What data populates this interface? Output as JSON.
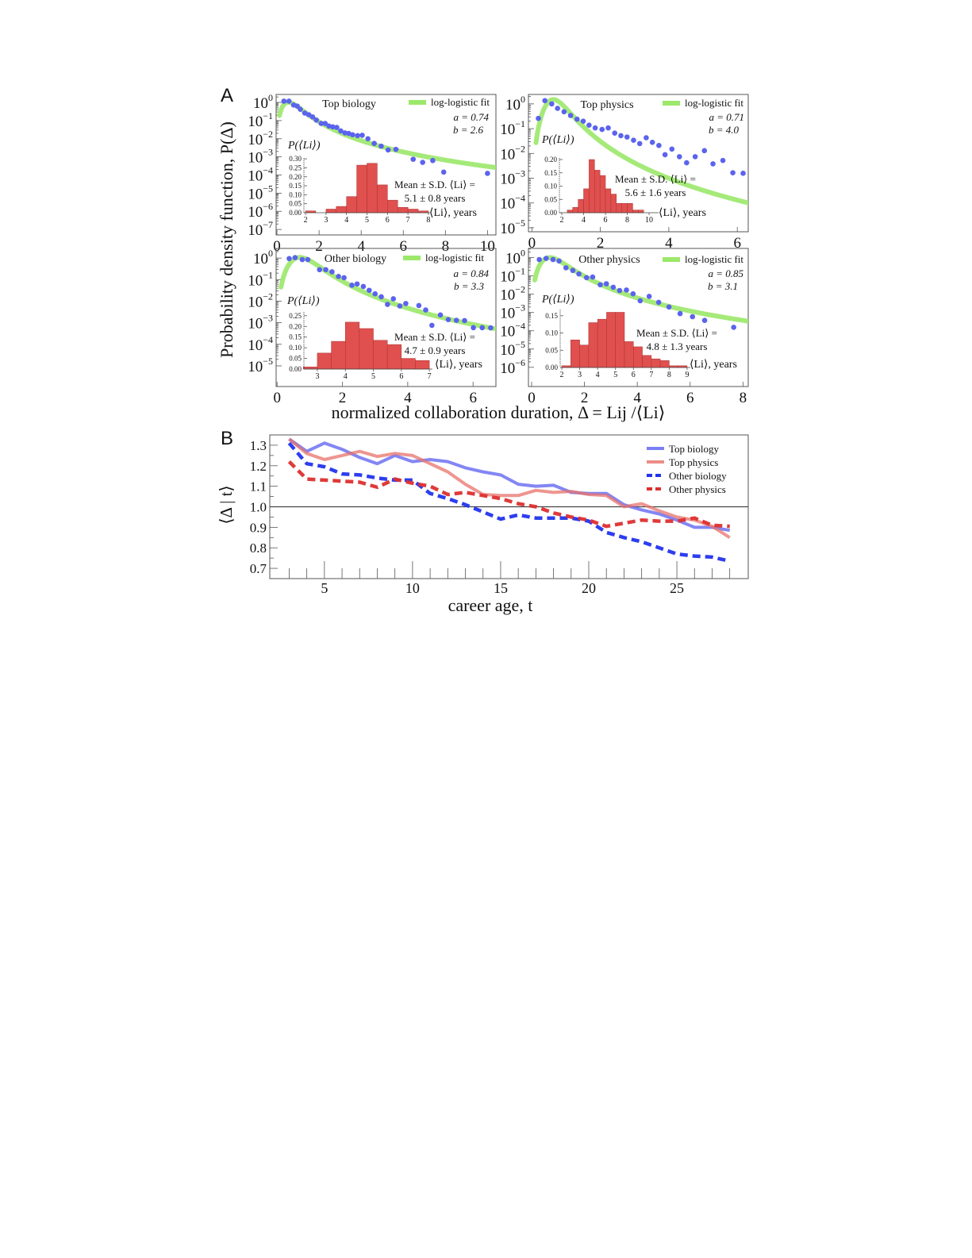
{
  "figure": {
    "panel_a_label": "A",
    "panel_b_label": "B",
    "a_ylabel": "Probability density function, P(Δ)",
    "a_xlabel": "normalized collaboration duration, Δ = Lij /⟨Li⟩"
  },
  "colors": {
    "scatter": "#5b63ee",
    "fit": "#9be86a",
    "histogram": "#e0504f",
    "histogram_edge": "#a83232",
    "top_biology": "#5a5ef0",
    "top_physics": "#e8716b",
    "other_biology": "#2233ee",
    "other_physics": "#dd2f2f"
  },
  "chart_data": [
    {
      "type": "scatter",
      "panel": "A",
      "title": "Top biology",
      "y_scale": "log",
      "xlim": [
        -0.04,
        10.4
      ],
      "ylim": [
        5e-08,
        2.75
      ],
      "xticks": [
        0,
        2,
        4,
        6,
        8,
        10
      ],
      "yticks_exp": [
        0,
        -1,
        -2,
        -3,
        -4,
        -5,
        -6,
        -7
      ],
      "x": [
        0.33,
        0.57,
        0.79,
        0.96,
        1.11,
        1.32,
        1.51,
        1.69,
        1.87,
        2.1,
        2.29,
        2.47,
        2.65,
        2.84,
        3.03,
        3.23,
        3.41,
        3.59,
        3.83,
        4.05,
        4.32,
        4.62,
        4.95,
        5.28,
        5.65,
        6.47,
        6.92,
        7.4,
        7.92,
        10.0
      ],
      "y": [
        1.17,
        1.17,
        0.72,
        0.63,
        0.42,
        0.26,
        0.21,
        0.16,
        0.107,
        0.069,
        0.069,
        0.05,
        0.045,
        0.042,
        0.027,
        0.021,
        0.0195,
        0.0166,
        0.0148,
        0.0155,
        0.01,
        0.0055,
        0.0039,
        0.0024,
        0.0026,
        0.00074,
        0.0005,
        0.00063,
        0.000145,
        0.000123
      ],
      "fit": {
        "label": "log-logistic fit",
        "a": 0.74,
        "b": 2.6,
        "a_text": "a = 0.74",
        "b_text": "b = 2.6"
      },
      "inset": {
        "type": "bar",
        "ylabel": "P(⟨Li⟩)",
        "xlabel": "⟨Li⟩, years",
        "annotation": [
          "Mean ± S.D. ⟨Li⟩ =",
          "5.1 ± 0.8 years"
        ],
        "bin_width": 0.5,
        "bins": [
          2,
          2.5,
          3,
          3.5,
          4,
          4.5,
          5,
          5.5,
          6,
          6.5,
          7,
          7.5
        ],
        "values": [
          0.01,
          0,
          0.02,
          0.035,
          0.09,
          0.265,
          0.275,
          0.155,
          0.07,
          0.03,
          0.02,
          0.01
        ],
        "xlim": [
          1.92,
          8.08
        ],
        "ylim": [
          0,
          0.305
        ],
        "xticks": [
          2,
          3,
          4,
          5,
          6,
          7,
          8
        ],
        "yticks": [
          "0.00",
          "0.05",
          "0.10",
          "0.15",
          "0.20",
          "0.25",
          "0.30"
        ]
      }
    },
    {
      "type": "scatter",
      "panel": "A",
      "title": "Top physics",
      "y_scale": "log",
      "xlim": [
        -0.1,
        6.32
      ],
      "ylim": [
        6.9e-06,
        2.4
      ],
      "xticks": [
        0,
        2,
        4,
        6
      ],
      "yticks_exp": [
        0,
        -1,
        -2,
        -3,
        -4,
        -5
      ],
      "x": [
        0.19,
        0.38,
        0.58,
        0.75,
        0.94,
        1.13,
        1.32,
        1.5,
        1.67,
        1.85,
        2.05,
        2.23,
        2.42,
        2.6,
        2.78,
        2.97,
        3.15,
        3.34,
        3.52,
        3.71,
        3.89,
        4.09,
        4.31,
        4.52,
        4.77,
        5.04,
        5.29,
        5.58,
        5.87,
        6.17
      ],
      "y": [
        0.26,
        1.35,
        1.0,
        0.66,
        0.48,
        0.34,
        0.24,
        0.2,
        0.138,
        0.107,
        0.093,
        0.107,
        0.066,
        0.052,
        0.046,
        0.034,
        0.025,
        0.043,
        0.028,
        0.021,
        0.0089,
        0.015,
        0.0074,
        0.0042,
        0.0074,
        0.0129,
        0.0038,
        0.0052,
        0.00166,
        0.00158
      ],
      "fit": {
        "label": "log-logistic fit",
        "a": 0.71,
        "b": 4.0,
        "a_text": "a = 0.71",
        "b_text": "b = 4.0"
      },
      "inset": {
        "type": "bar",
        "ylabel": "P(⟨Li⟩)",
        "xlabel": "⟨Li⟩, years",
        "annotation": [
          "Mean ± S.D. ⟨Li⟩ =",
          "5.6 ± 1.6 years"
        ],
        "bin_width": 0.5,
        "bins": [
          2.5,
          3,
          3.5,
          4,
          4.5,
          5,
          5.5,
          6,
          6.5,
          7,
          7.5,
          8,
          8.5,
          9
        ],
        "values": [
          0.01,
          0.02,
          0.05,
          0.09,
          0.2,
          0.16,
          0.14,
          0.09,
          0.07,
          0.035,
          0.035,
          0.035,
          0.01,
          0.01
        ],
        "xlim": [
          1.78,
          10.87
        ],
        "ylim": [
          0,
          0.206
        ],
        "xticks": [
          2,
          4,
          6,
          8,
          10
        ],
        "yticks": [
          "0.00",
          "0.05",
          "0.10",
          "0.15",
          "0.20"
        ]
      }
    },
    {
      "type": "scatter",
      "panel": "A",
      "title": "Other biology",
      "y_scale": "log",
      "xlim": [
        -0.03,
        6.7
      ],
      "ylim": [
        1.1e-06,
        2.8
      ],
      "xticks": [
        0,
        2,
        4,
        6
      ],
      "yticks_exp": [
        0,
        -1,
        -2,
        -3,
        -4,
        -5
      ],
      "x": [
        0.37,
        0.55,
        0.77,
        0.94,
        1.3,
        1.49,
        1.68,
        1.88,
        2.05,
        2.29,
        2.45,
        2.64,
        2.82,
        3.0,
        3.19,
        3.38,
        3.56,
        3.76,
        3.94,
        4.34,
        4.55,
        4.74,
        5.0,
        5.24,
        5.49,
        5.74,
        6.01,
        6.28,
        6.54
      ],
      "y": [
        0.95,
        1.05,
        0.85,
        0.85,
        0.29,
        0.29,
        0.23,
        0.14,
        0.123,
        0.055,
        0.063,
        0.048,
        0.032,
        0.022,
        0.016,
        0.0071,
        0.0129,
        0.006,
        0.0078,
        0.0063,
        0.0039,
        0.00076,
        0.0023,
        0.0014,
        0.0013,
        0.00126,
        0.00059,
        0.00059,
        0.00058
      ],
      "fit": {
        "label": "log-logistic fit",
        "a": 0.84,
        "b": 3.3,
        "a_text": "a = 0.84",
        "b_text": "b = 3.3"
      },
      "inset": {
        "type": "bar",
        "ylabel": "P(⟨Li⟩)",
        "xlabel": "⟨Li⟩, years",
        "annotation": [
          "Mean ± S.D. ⟨Li⟩ =",
          "4.7 ± 0.9 years"
        ],
        "bin_width": 0.5,
        "bins": [
          2.5,
          3,
          3.5,
          4,
          4.5,
          5,
          5.5,
          6,
          6.5
        ],
        "values": [
          0.01,
          0.075,
          0.13,
          0.22,
          0.19,
          0.135,
          0.115,
          0.05,
          0.04
        ],
        "xlim": [
          2.52,
          7.11
        ],
        "ylim": [
          0,
          0.268
        ],
        "xticks": [
          3,
          4,
          5,
          6,
          7
        ],
        "yticks": [
          "0.00",
          "0.05",
          "0.10",
          "0.15",
          "0.20",
          "0.25"
        ]
      }
    },
    {
      "type": "scatter",
      "panel": "A",
      "title": "Other physics",
      "y_scale": "log",
      "xlim": [
        -0.12,
        8.2
      ],
      "ylim": [
        8.9e-08,
        3.2
      ],
      "xticks": [
        0,
        2,
        4,
        6,
        8
      ],
      "yticks_exp": [
        0,
        -1,
        -2,
        -3,
        -4,
        -5,
        -6
      ],
      "x": [
        0.29,
        0.55,
        0.81,
        1.04,
        1.3,
        1.56,
        1.79,
        2.08,
        2.31,
        2.6,
        2.83,
        3.09,
        3.33,
        3.59,
        3.84,
        4.11,
        4.45,
        4.81,
        5.2,
        5.62,
        6.09,
        6.55,
        7.65
      ],
      "y": [
        0.79,
        0.91,
        0.79,
        0.66,
        0.28,
        0.2,
        0.129,
        0.081,
        0.087,
        0.033,
        0.037,
        0.024,
        0.016,
        0.017,
        0.0105,
        0.0044,
        0.0076,
        0.0036,
        0.002,
        0.00087,
        0.00059,
        0.00037,
        0.000155
      ],
      "fit": {
        "label": "log-logistic fit",
        "a": 0.85,
        "b": 3.1,
        "a_text": "a = 0.85",
        "b_text": "b = 3.1"
      },
      "inset": {
        "type": "bar",
        "ylabel": "P(⟨Li⟩)",
        "xlabel": "⟨Li⟩, years",
        "annotation": [
          "Mean ± S.D. ⟨Li⟩ =",
          "4.8 ± 1.3 years"
        ],
        "bin_width": 0.5,
        "bins": [
          2,
          2.5,
          3,
          3.5,
          4,
          4.5,
          5,
          5.5,
          6,
          6.5,
          7,
          7.5,
          8,
          8.5
        ],
        "values": [
          0.005,
          0.08,
          0.065,
          0.13,
          0.14,
          0.16,
          0.16,
          0.075,
          0.06,
          0.035,
          0.025,
          0.02,
          0.005,
          0.005
        ],
        "xlim": [
          1.91,
          9.18
        ],
        "ylim": [
          0,
          0.168
        ],
        "xticks": [
          2,
          3,
          4,
          5,
          6,
          7,
          8,
          9
        ],
        "yticks": [
          "0.00",
          "0.05",
          "0.10",
          "0.15"
        ]
      }
    },
    {
      "type": "line",
      "panel": "B",
      "xlabel": "career age, t",
      "ylabel": "⟨Δ | t⟩",
      "xlim": [
        1.9,
        29.05
      ],
      "ylim": [
        0.65,
        1.35
      ],
      "xticks": [
        5,
        10,
        15,
        20,
        25
      ],
      "yticks": [
        "0.7",
        "0.8",
        "0.9",
        "1.0",
        "1.1",
        "1.2",
        "1.3"
      ],
      "reference_line": 1.0,
      "legend": "top-right",
      "x": [
        3,
        4,
        5,
        6,
        7,
        8,
        9,
        10,
        11,
        12,
        13,
        14,
        15,
        16,
        17,
        18,
        19,
        20,
        21,
        22,
        23,
        24,
        25,
        26,
        27,
        28
      ],
      "series": [
        {
          "name": "Top biology",
          "style": "solid",
          "color": "#5a5ef0",
          "values": [
            1.33,
            1.27,
            1.31,
            1.28,
            1.24,
            1.21,
            1.25,
            1.22,
            1.23,
            1.22,
            1.19,
            1.17,
            1.155,
            1.11,
            1.1,
            1.105,
            1.07,
            1.065,
            1.065,
            1.01,
            0.985,
            0.965,
            0.935,
            0.9,
            0.9,
            0.885
          ]
        },
        {
          "name": "Top physics",
          "style": "solid",
          "color": "#e8716b",
          "values": [
            1.33,
            1.26,
            1.23,
            1.25,
            1.27,
            1.245,
            1.26,
            1.25,
            1.21,
            1.17,
            1.11,
            1.06,
            1.055,
            1.055,
            1.08,
            1.07,
            1.075,
            1.06,
            1.055,
            1.0,
            1.015,
            0.98,
            0.95,
            0.935,
            0.905,
            0.85
          ]
        },
        {
          "name": "Other biology",
          "style": "dashed",
          "color": "#2233ee",
          "values": [
            1.31,
            1.21,
            1.195,
            1.16,
            1.155,
            1.14,
            1.13,
            1.13,
            1.065,
            1.04,
            1.01,
            0.975,
            0.94,
            0.96,
            0.945,
            0.945,
            0.945,
            0.93,
            0.875,
            0.85,
            0.83,
            0.8,
            0.77,
            0.76,
            0.755,
            0.735
          ]
        },
        {
          "name": "Other physics",
          "style": "dashed",
          "color": "#dd2f2f",
          "values": [
            1.22,
            1.135,
            1.13,
            1.125,
            1.12,
            1.095,
            1.135,
            1.115,
            1.1,
            1.06,
            1.07,
            1.055,
            1.04,
            1.015,
            1.0,
            0.97,
            0.95,
            0.935,
            0.905,
            0.92,
            0.935,
            0.93,
            0.93,
            0.945,
            0.91,
            0.905
          ]
        }
      ]
    }
  ]
}
